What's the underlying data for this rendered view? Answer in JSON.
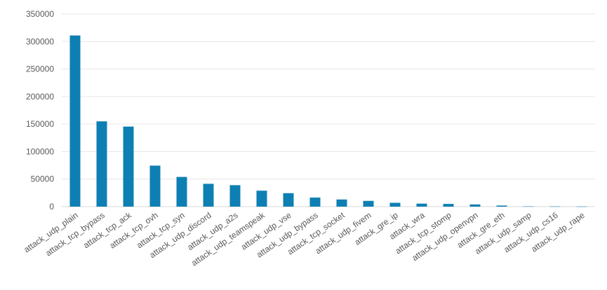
{
  "chart_data": {
    "type": "bar",
    "title": "",
    "xlabel": "",
    "ylabel": "",
    "categories": [
      "attack_udp_plain",
      "attack_tcp_bypass",
      "attack_tcp_ack",
      "attack_tcp_ovh",
      "attack_tcp_syn",
      "attack_udp_discord",
      "attack_udp_a2s",
      "attack_udp_teamspeak",
      "attack_udp_vse",
      "attack_udp_bypass",
      "attack_tcp_socket",
      "attack_udp_fivem",
      "attack_gre_ip",
      "attack_wra",
      "attack_tcp_stomp",
      "attack_udp_openvpn",
      "attack_gre_eth",
      "attack_udp_samp",
      "attack_udp_cs16",
      "attack_udp_rape"
    ],
    "values": [
      311000,
      155000,
      145500,
      74500,
      54000,
      41500,
      39000,
      29000,
      24500,
      16500,
      13000,
      10500,
      7000,
      5500,
      5000,
      4000,
      2000,
      500,
      400,
      300
    ],
    "ylim": [
      0,
      350000
    ],
    "yticks": [
      "0",
      "50000",
      "100000",
      "150000",
      "200000",
      "250000",
      "300000",
      "350000"
    ],
    "grid": true,
    "legend": "none",
    "bar_color": "#0e7fb3"
  }
}
